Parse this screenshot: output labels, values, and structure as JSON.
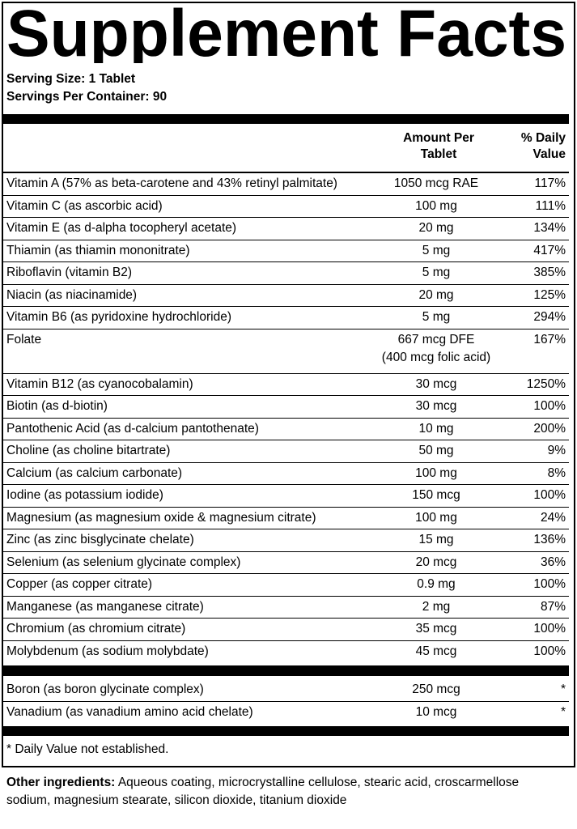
{
  "header": {
    "title": "Supplement Facts",
    "serving_size": "Serving Size: 1 Tablet",
    "servings_per_container": "Servings Per Container: 90"
  },
  "table": {
    "columns": [
      "Amount Per Tablet",
      "% Daily Value"
    ],
    "rows": [
      {
        "name": "Vitamin A (57% as beta-carotene and 43% retinyl palmitate)",
        "amount": "1050 mcg RAE",
        "dv": "117%"
      },
      {
        "name": "Vitamin C (as ascorbic acid)",
        "amount": "100 mg",
        "dv": "111%"
      },
      {
        "name": "Vitamin E (as d-alpha tocopheryl acetate)",
        "amount": "20 mg",
        "dv": "134%"
      },
      {
        "name": "Thiamin (as thiamin mononitrate)",
        "amount": "5 mg",
        "dv": "417%"
      },
      {
        "name": "Riboflavin (vitamin B2)",
        "amount": "5 mg",
        "dv": "385%"
      },
      {
        "name": "Niacin (as niacinamide)",
        "amount": "20 mg",
        "dv": "125%"
      },
      {
        "name": "Vitamin B6 (as pyridoxine hydrochloride)",
        "amount": "5 mg",
        "dv": "294%"
      },
      {
        "name": "Folate",
        "amount": "667 mcg DFE",
        "note": "(400 mcg folic acid)",
        "dv": "167%"
      },
      {
        "name": "Vitamin B12 (as cyanocobalamin)",
        "amount": "30 mcg",
        "dv": "1250%"
      },
      {
        "name": "Biotin (as d-biotin)",
        "amount": "30 mcg",
        "dv": "100%"
      },
      {
        "name": "Pantothenic Acid (as d-calcium pantothenate)",
        "amount": "10 mg",
        "dv": "200%"
      },
      {
        "name": "Choline (as choline bitartrate)",
        "amount": "50 mg",
        "dv": "9%"
      },
      {
        "name": "Calcium (as calcium carbonate)",
        "amount": "100 mg",
        "dv": "8%"
      },
      {
        "name": "Iodine (as potassium iodide)",
        "amount": "150 mcg",
        "dv": "100%"
      },
      {
        "name": "Magnesium (as magnesium oxide & magnesium citrate)",
        "amount": "100 mg",
        "dv": "24%"
      },
      {
        "name": "Zinc (as zinc bisglycinate chelate)",
        "amount": "15 mg",
        "dv": "136%"
      },
      {
        "name": "Selenium (as selenium glycinate complex)",
        "amount": "20 mcg",
        "dv": "36%"
      },
      {
        "name": "Copper (as copper citrate)",
        "amount": "0.9 mg",
        "dv": "100%"
      },
      {
        "name": "Manganese (as manganese citrate)",
        "amount": "2 mg",
        "dv": "87%"
      },
      {
        "name": "Chromium (as chromium citrate)",
        "amount": "35 mcg",
        "dv": "100%"
      },
      {
        "name": "Molybdenum (as sodium molybdate)",
        "amount": "45 mcg",
        "dv": "100%"
      }
    ],
    "other_rows": [
      {
        "name": "Boron (as boron glycinate complex)",
        "amount": "250 mcg",
        "dv": "*"
      },
      {
        "name": "Vanadium (as vanadium amino acid chelate)",
        "amount": "10 mcg",
        "dv": "*"
      }
    ]
  },
  "footnote": "* Daily Value not established.",
  "other_ingredients": {
    "label": "Other ingredients:",
    "text": "Aqueous coating, microcrystalline cellulose, stearic acid, croscarmellose sodium, magnesium stearate, silicon dioxide, titanium dioxide"
  }
}
